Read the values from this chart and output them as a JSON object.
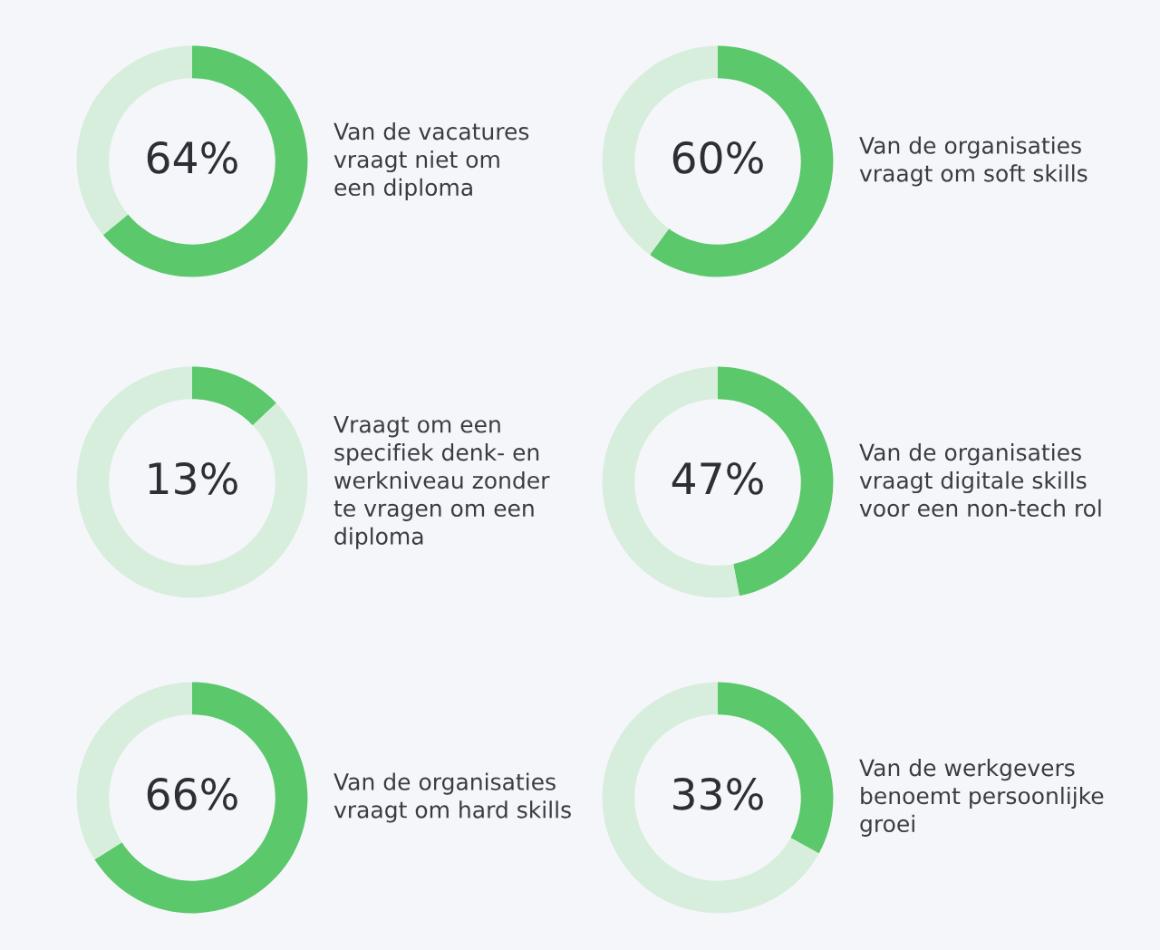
{
  "chart_data": [
    {
      "type": "donut",
      "categories": [
        null,
        null
      ],
      "values": [
        64,
        36
      ],
      "colors": [
        "#5bc86b",
        "#d7eedd"
      ],
      "value_labels": [
        "64%",
        null
      ],
      "annotations": [
        "Van de vacatures\nvraagt niet om\neen diploma"
      ]
    },
    {
      "type": "donut",
      "categories": [
        null,
        null
      ],
      "values": [
        60,
        40
      ],
      "colors": [
        "#5bc86b",
        "#d7eedd"
      ],
      "value_labels": [
        "60%",
        null
      ],
      "annotations": [
        "Van de organisaties\nvraagt om soft skills"
      ]
    },
    {
      "type": "donut",
      "categories": [
        null,
        null
      ],
      "values": [
        13,
        87
      ],
      "colors": [
        "#5bc86b",
        "#d7eedd"
      ],
      "value_labels": [
        "13%",
        null
      ],
      "annotations": [
        "Vraagt om een\nspecifiek denk- en\nwerkniveau zonder\nte vragen om een\ndiploma"
      ]
    },
    {
      "type": "donut",
      "categories": [
        null,
        null
      ],
      "values": [
        47,
        53
      ],
      "colors": [
        "#5bc86b",
        "#d7eedd"
      ],
      "value_labels": [
        "47%",
        null
      ],
      "annotations": [
        "Van de organisaties\nvraagt digitale skills\nvoor een non-tech rol"
      ]
    },
    {
      "type": "donut",
      "categories": [
        null,
        null
      ],
      "values": [
        66,
        34
      ],
      "colors": [
        "#5bc86b",
        "#d7eedd"
      ],
      "value_labels": [
        "66%",
        null
      ],
      "annotations": [
        "Van de organisaties\nvraagt om hard skills"
      ]
    },
    {
      "type": "donut",
      "categories": [
        null,
        null
      ],
      "values": [
        33,
        67
      ],
      "colors": [
        "#5bc86b",
        "#d7eedd"
      ],
      "value_labels": [
        "33%",
        null
      ],
      "annotations": [
        "Van de werkgevers\nbenoemt persoonlijke\ngroei"
      ]
    }
  ]
}
